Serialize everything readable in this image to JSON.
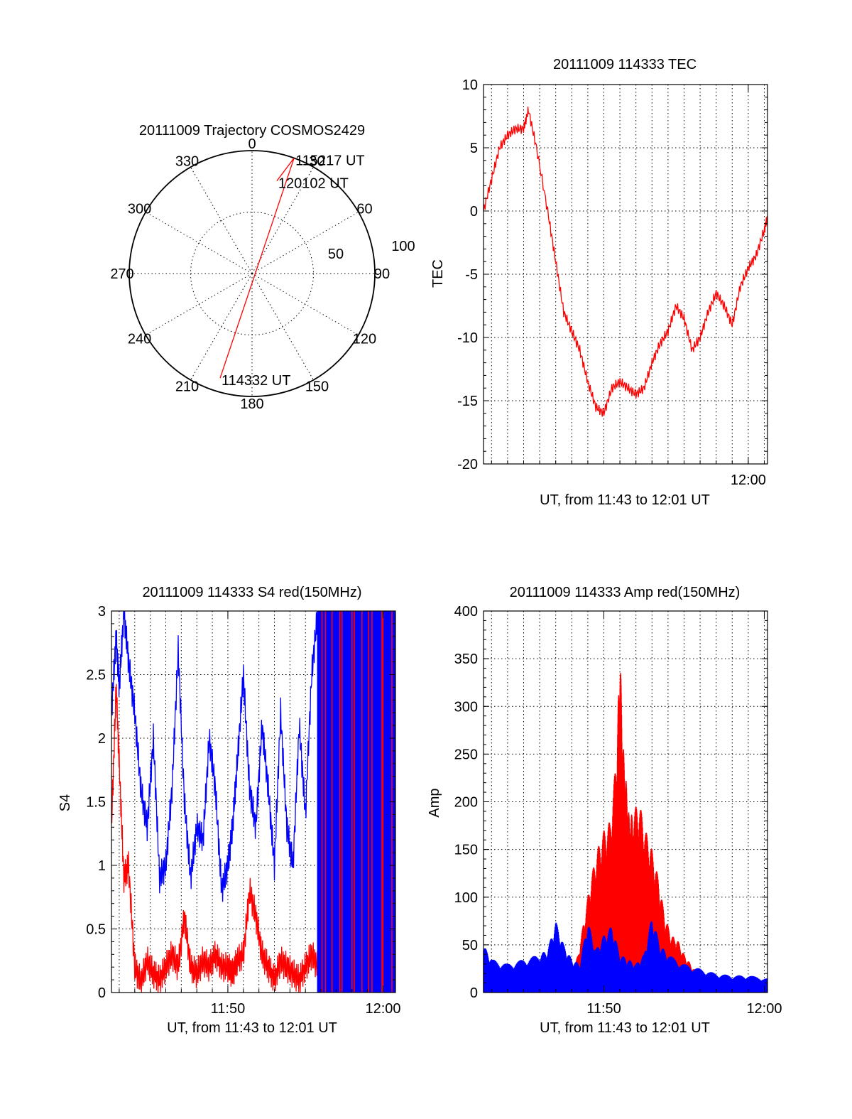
{
  "chart_data": [
    {
      "type": "polar",
      "title": "20111009 Trajectory COSMOS2429",
      "angle_labels": [
        "0",
        "30",
        "60",
        "90",
        "120",
        "150",
        "180",
        "210",
        "240",
        "270",
        "300",
        "330"
      ],
      "radius_labels": [
        "50",
        "100"
      ],
      "rmax": 100,
      "grid": true,
      "series": [
        {
          "color": "#ff0000",
          "points": [
            {
              "az": 197,
              "el": 11,
              "label": "114332 UT"
            },
            {
              "az": 20,
              "el": 0,
              "label": "115217 UT"
            },
            {
              "az": 15,
              "el": 22,
              "label": "120102 UT"
            }
          ]
        }
      ]
    },
    {
      "type": "line",
      "title": "20111009 114333 TEC",
      "xlabel": "UT, from 11:43 to 12:01 UT",
      "ylabel": "TEC",
      "xlim": [
        703.5,
        721.2
      ],
      "ylim": [
        -20,
        10
      ],
      "yticks": [
        "10",
        "5",
        "0",
        "-5",
        "-10",
        "-15",
        "-20"
      ],
      "xtick_labels": [
        {
          "x": 720,
          "label": "12:00"
        }
      ],
      "grid": true,
      "series": [
        {
          "color": "#ff0000",
          "x": [
            703.5,
            704.0,
            704.5,
            705.0,
            705.5,
            706.0,
            706.3,
            706.8,
            707.5,
            708.0,
            708.5,
            709.0,
            709.5,
            710.0,
            710.5,
            711.0,
            711.5,
            712.0,
            712.5,
            713.0,
            713.5,
            714.0,
            714.5,
            715.0,
            715.5,
            716.0,
            716.5,
            717.0,
            717.5,
            718.0,
            718.5,
            719.0,
            719.5,
            720.0,
            720.5,
            721.0,
            721.2
          ],
          "y": [
            0,
            2.5,
            5,
            6,
            6.5,
            6.5,
            8,
            5,
            0,
            -4,
            -8,
            -9.5,
            -11,
            -13.5,
            -15.5,
            -16,
            -14,
            -13.5,
            -14,
            -14.5,
            -14,
            -12,
            -10.5,
            -9.5,
            -7.5,
            -8.5,
            -11,
            -10,
            -8,
            -6.5,
            -7.5,
            -9,
            -6,
            -4.5,
            -3.5,
            -1.5,
            -0.5
          ]
        }
      ]
    },
    {
      "type": "line",
      "title": "20111009 114333 S4 red(150MHz)",
      "xlabel": "UT, from 11:43 to 12:01 UT",
      "ylabel": "S4",
      "xlim": [
        702.5,
        720.8
      ],
      "ylim": [
        0,
        3
      ],
      "yticks": [
        "3",
        "2.5",
        "2",
        "1.5",
        "1",
        "0.5",
        "0"
      ],
      "xtick_labels": [
        {
          "x": 710,
          "label": "11:50"
        },
        {
          "x": 720,
          "label": "12:00"
        }
      ],
      "grid": true,
      "series": [
        {
          "color": "#0000ff",
          "x": [
            702.5,
            702.8,
            703.0,
            703.3,
            703.6,
            704.0,
            704.4,
            704.8,
            705.2,
            705.6,
            706.0,
            706.4,
            706.8,
            707.2,
            707.6,
            708.0,
            708.4,
            708.8,
            709.2,
            709.6,
            710.0,
            710.3,
            710.6,
            711.0,
            711.4,
            711.8,
            712.2,
            712.6,
            713.0,
            713.4,
            713.8,
            714.2,
            714.6,
            715.0,
            715.4,
            715.8
          ],
          "y": [
            2.2,
            2.8,
            2.4,
            3.0,
            2.6,
            2.2,
            1.6,
            1.3,
            2.0,
            0.9,
            1.0,
            1.6,
            2.7,
            1.5,
            0.9,
            1.3,
            1.2,
            2.0,
            1.6,
            0.8,
            1.0,
            1.3,
            1.8,
            2.5,
            1.6,
            1.3,
            2.1,
            1.6,
            1.0,
            2.2,
            1.3,
            1.0,
            2.1,
            1.4,
            2.5,
            3.0
          ]
        },
        {
          "color": "#ff0000",
          "x": [
            702.5,
            702.8,
            703.0,
            703.3,
            703.6,
            704.0,
            704.4,
            704.8,
            705.2,
            705.6,
            706.0,
            706.4,
            706.8,
            707.2,
            707.6,
            708.0,
            708.4,
            708.8,
            709.2,
            709.6,
            710.0,
            710.3,
            710.6,
            711.0,
            711.4,
            711.8,
            712.2,
            712.6,
            713.0,
            713.4,
            713.8,
            714.2,
            714.6,
            715.0,
            715.4,
            715.8
          ],
          "y": [
            1.3,
            2.4,
            1.8,
            0.9,
            1.0,
            0.2,
            0.08,
            0.25,
            0.15,
            0.1,
            0.2,
            0.3,
            0.2,
            0.6,
            0.2,
            0.15,
            0.25,
            0.2,
            0.3,
            0.2,
            0.2,
            0.15,
            0.25,
            0.3,
            0.8,
            0.6,
            0.3,
            0.2,
            0.1,
            0.25,
            0.2,
            0.15,
            0.1,
            0.2,
            0.3,
            0.2
          ]
        }
      ]
    },
    {
      "type": "area",
      "title": "20111009 114333 Amp red(150MHz)",
      "xlabel": "UT, from 11:43 to 12:01 UT",
      "ylabel": "Amp",
      "xlim": [
        702.5,
        720.2
      ],
      "ylim": [
        0,
        400
      ],
      "yticks": [
        "400",
        "350",
        "300",
        "250",
        "200",
        "150",
        "100",
        "50",
        "0"
      ],
      "xtick_labels": [
        {
          "x": 710,
          "label": "11:50"
        },
        {
          "x": 720,
          "label": "12:00"
        }
      ],
      "grid": true,
      "series": [
        {
          "color": "#ff0000",
          "x": [
            708.0,
            708.4,
            708.8,
            709.2,
            709.6,
            710.0,
            710.4,
            710.8,
            711.0,
            711.2,
            711.4,
            711.6,
            711.8,
            712.2,
            712.6,
            713.0,
            713.4,
            713.8,
            714.2,
            714.6,
            715.0,
            715.4,
            715.8
          ],
          "y": [
            20,
            40,
            80,
            120,
            150,
            170,
            180,
            250,
            362,
            260,
            220,
            180,
            190,
            200,
            170,
            150,
            120,
            80,
            60,
            55,
            40,
            30,
            20
          ]
        },
        {
          "color": "#0000ff",
          "x": [
            702.5,
            703.0,
            704.0,
            705.0,
            706.0,
            706.5,
            707.0,
            707.5,
            708.0,
            708.5,
            709.0,
            709.5,
            710.0,
            710.5,
            711.0,
            711.5,
            712.0,
            712.5,
            713.0,
            713.5,
            714.0,
            715.0,
            716.0,
            717.0,
            718.0,
            719.0,
            720.2
          ],
          "y": [
            50,
            35,
            30,
            35,
            40,
            45,
            75,
            50,
            35,
            30,
            75,
            45,
            60,
            70,
            40,
            35,
            30,
            40,
            80,
            50,
            40,
            30,
            25,
            20,
            18,
            18,
            15
          ]
        }
      ]
    }
  ]
}
